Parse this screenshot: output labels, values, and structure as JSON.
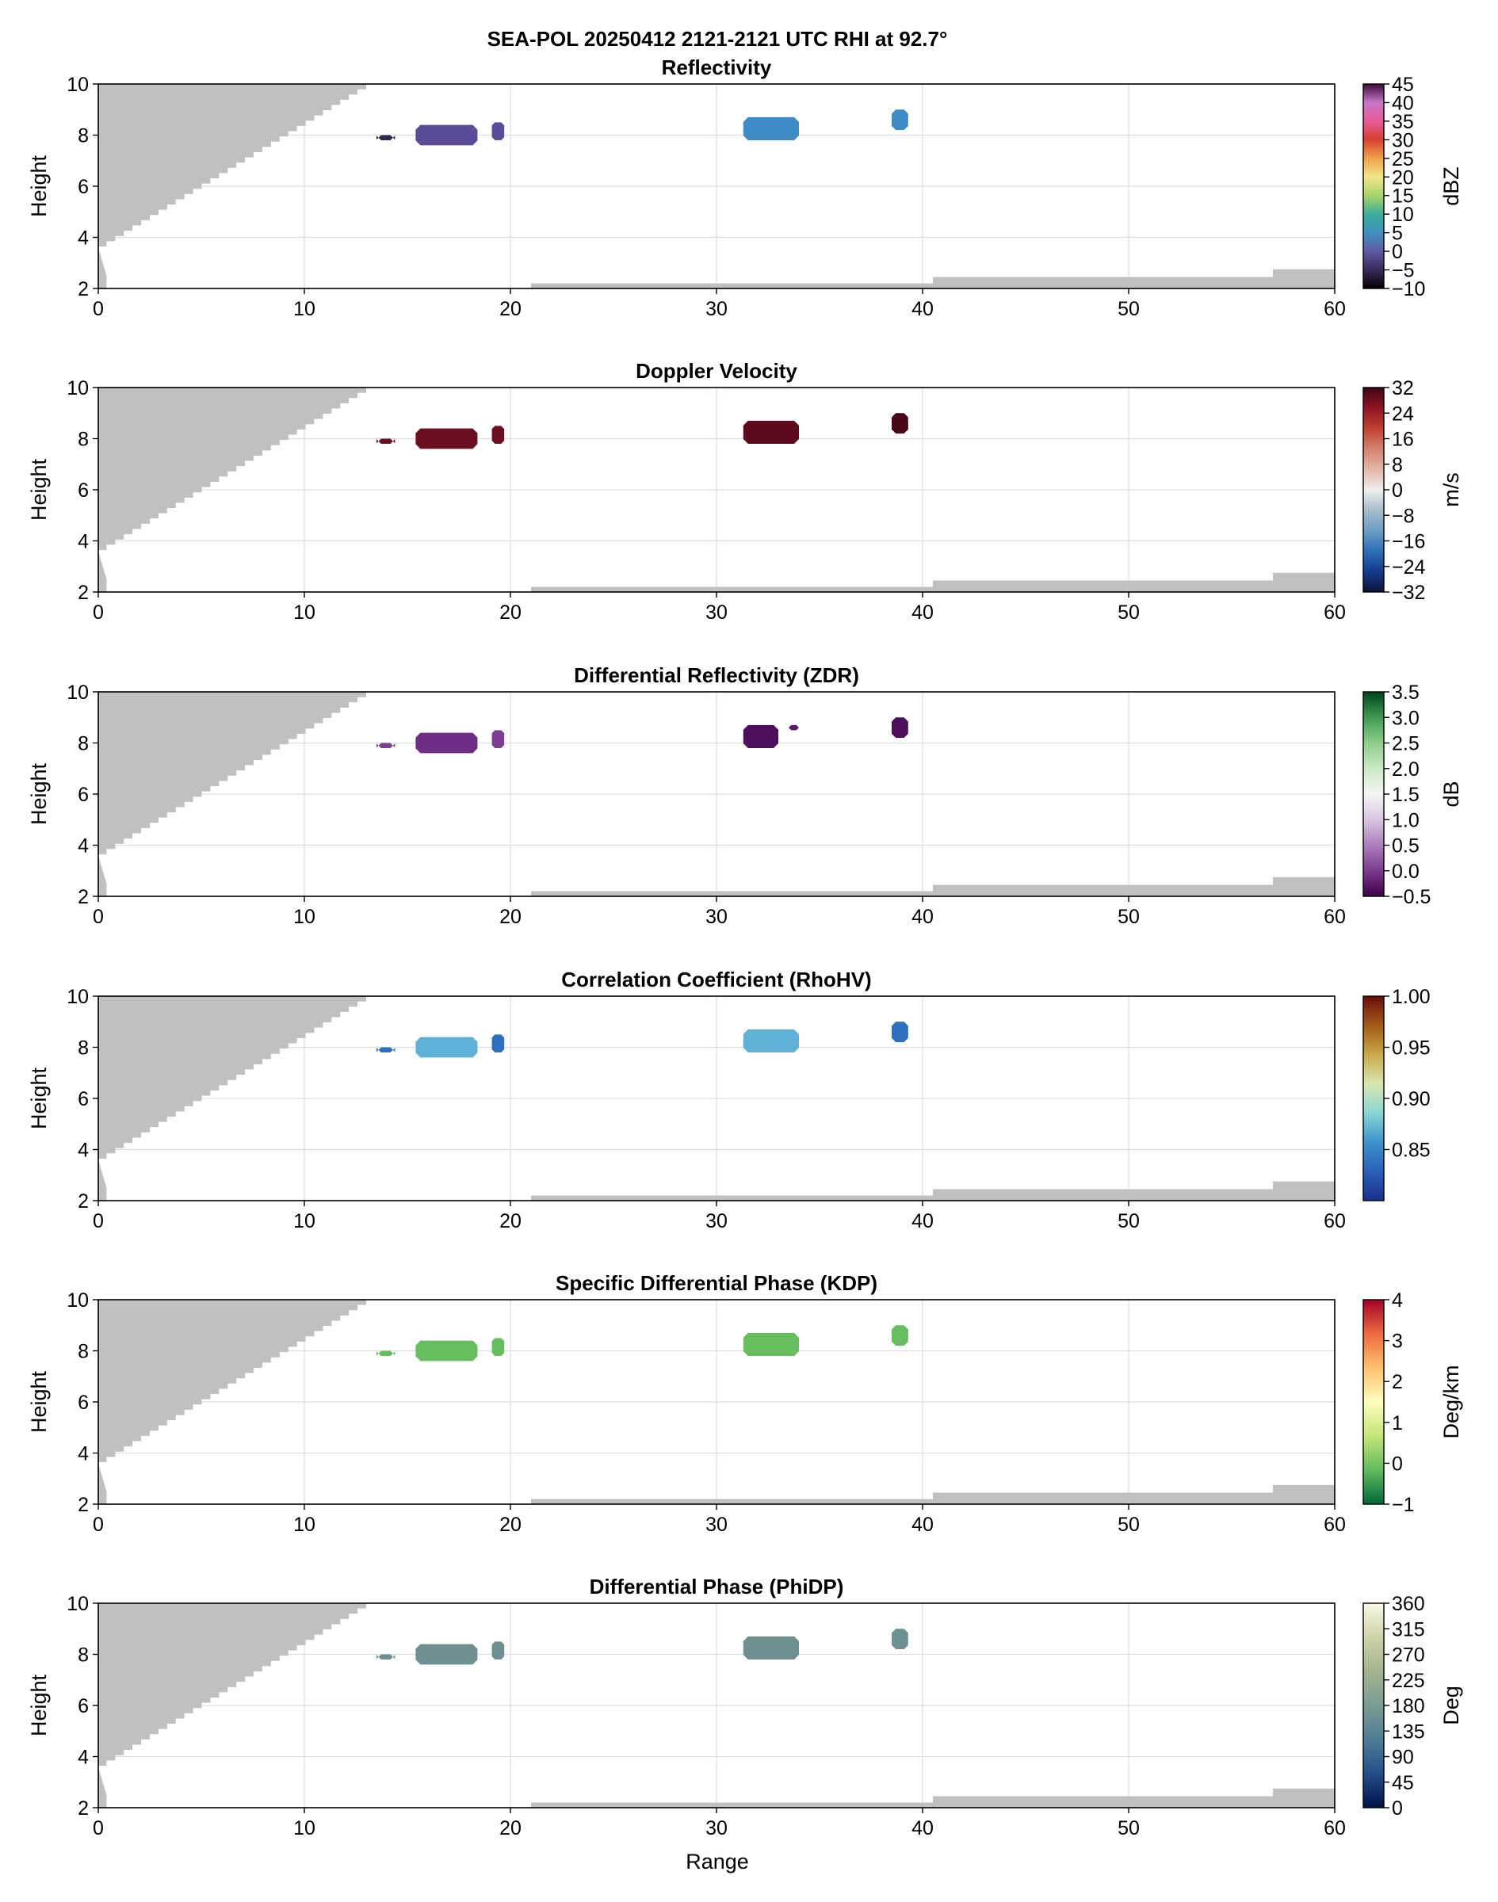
{
  "figure": {
    "suptitle": "SEA-POL 20250412 2121-2121 UTC RHI at 92.7°",
    "xlabel": "Range"
  },
  "colors": {
    "blocked_gray": "#c0c0c0",
    "grid": "#dedede",
    "axis": "#000000"
  },
  "chart_data": [
    {
      "type": "heatmap",
      "title": "Reflectivity",
      "xlabel": "",
      "ylabel": "Height",
      "xlim": [
        0,
        60
      ],
      "ylim": [
        2,
        10
      ],
      "xticks": [
        0,
        10,
        20,
        30,
        40,
        50,
        60
      ],
      "yticks": [
        2,
        4,
        6,
        8,
        10
      ],
      "grid": true,
      "colorbar": {
        "label": "dBZ",
        "range": [
          -10,
          45
        ],
        "ticks": [
          "45",
          "40",
          "35",
          "30",
          "25",
          "20",
          "15",
          "10",
          "5",
          "0",
          "−5",
          "−10"
        ],
        "tick_values": [
          45,
          40,
          35,
          30,
          25,
          20,
          15,
          10,
          5,
          0,
          -5,
          -10
        ],
        "stops": [
          "#000000",
          "#3a2a5a",
          "#5f5aa5",
          "#3f8fc0",
          "#3cae9a",
          "#a8d36a",
          "#f2e68a",
          "#f2a24a",
          "#d8402e",
          "#e85a9a",
          "#c877c8",
          "#3d0a3a"
        ]
      },
      "echoes": [
        {
          "x": [
            13.5,
            14.4
          ],
          "y": [
            7.8,
            8.0
          ],
          "color": "#2e2a4e"
        },
        {
          "x": [
            15.4,
            18.4
          ],
          "y": [
            7.6,
            8.4
          ],
          "color": "#5a4c98"
        },
        {
          "x": [
            19.1,
            19.7
          ],
          "y": [
            7.8,
            8.5
          ],
          "color": "#5a4c98"
        },
        {
          "x": [
            31.3,
            34.0
          ],
          "y": [
            7.8,
            8.7
          ],
          "color": "#3e8cc6"
        },
        {
          "x": [
            38.5,
            39.3
          ],
          "y": [
            8.2,
            9.0
          ],
          "color": "#3e8cc6"
        }
      ]
    },
    {
      "type": "heatmap",
      "title": "Doppler Velocity",
      "xlabel": "",
      "ylabel": "Height",
      "xlim": [
        0,
        60
      ],
      "ylim": [
        2,
        10
      ],
      "xticks": [
        0,
        10,
        20,
        30,
        40,
        50,
        60
      ],
      "yticks": [
        2,
        4,
        6,
        8,
        10
      ],
      "grid": true,
      "colorbar": {
        "label": "m/s",
        "range": [
          -32,
          32
        ],
        "ticks": [
          "32",
          "24",
          "16",
          "8",
          "0",
          "−8",
          "−16",
          "−24",
          "−32"
        ],
        "tick_values": [
          32,
          24,
          16,
          8,
          0,
          -8,
          -16,
          -24,
          -32
        ],
        "stops": [
          "#0a1238",
          "#153a8c",
          "#2c6fb8",
          "#6c9ec4",
          "#a6bccb",
          "#efefef",
          "#e3b7a6",
          "#d3826e",
          "#c2402f",
          "#8f1424",
          "#3d0614"
        ]
      },
      "echoes": [
        {
          "x": [
            13.5,
            14.4
          ],
          "y": [
            7.8,
            8.0
          ],
          "color": "#6b0f23"
        },
        {
          "x": [
            15.4,
            18.4
          ],
          "y": [
            7.6,
            8.4
          ],
          "color": "#6b0f23"
        },
        {
          "x": [
            19.1,
            19.7
          ],
          "y": [
            7.8,
            8.5
          ],
          "color": "#6b0f23"
        },
        {
          "x": [
            31.3,
            34.0
          ],
          "y": [
            7.8,
            8.7
          ],
          "color": "#5e0a1e"
        },
        {
          "x": [
            38.5,
            39.3
          ],
          "y": [
            8.2,
            9.0
          ],
          "color": "#4a0718"
        }
      ]
    },
    {
      "type": "heatmap",
      "title": "Differential Reflectivity (ZDR)",
      "xlabel": "",
      "ylabel": "Height",
      "xlim": [
        0,
        60
      ],
      "ylim": [
        2,
        10
      ],
      "xticks": [
        0,
        10,
        20,
        30,
        40,
        50,
        60
      ],
      "yticks": [
        2,
        4,
        6,
        8,
        10
      ],
      "grid": true,
      "colorbar": {
        "label": "dB",
        "range": [
          -0.5,
          3.5
        ],
        "ticks": [
          "3.5",
          "3.0",
          "2.5",
          "2.0",
          "1.5",
          "1.0",
          "0.5",
          "0.0",
          "−0.5"
        ],
        "tick_values": [
          3.5,
          3.0,
          2.5,
          2.0,
          1.5,
          1.0,
          0.5,
          0.0,
          -0.5
        ],
        "stops": [
          "#3f004a",
          "#7b3a8c",
          "#ad7ebc",
          "#d8c4e0",
          "#f5f5f5",
          "#cbe8c4",
          "#8dce8a",
          "#3f9b51",
          "#00441b"
        ]
      },
      "echoes": [
        {
          "x": [
            13.5,
            14.4
          ],
          "y": [
            7.8,
            8.0
          ],
          "color": "#7d3d90"
        },
        {
          "x": [
            15.4,
            18.4
          ],
          "y": [
            7.6,
            8.4
          ],
          "color": "#6e2e86"
        },
        {
          "x": [
            19.1,
            19.7
          ],
          "y": [
            7.8,
            8.5
          ],
          "color": "#7d3d90"
        },
        {
          "x": [
            31.3,
            33.0
          ],
          "y": [
            7.8,
            8.7
          ],
          "color": "#4d0f5c"
        },
        {
          "x": [
            33.5,
            34.0
          ],
          "y": [
            8.5,
            8.7
          ],
          "color": "#5a1a6a"
        },
        {
          "x": [
            38.5,
            39.3
          ],
          "y": [
            8.2,
            9.0
          ],
          "color": "#4d0f5c"
        }
      ]
    },
    {
      "type": "heatmap",
      "title": "Correlation Coefficient (RhoHV)",
      "xlabel": "",
      "ylabel": "Height",
      "xlim": [
        0,
        60
      ],
      "ylim": [
        2,
        10
      ],
      "xticks": [
        0,
        10,
        20,
        30,
        40,
        50,
        60
      ],
      "yticks": [
        2,
        4,
        6,
        8,
        10
      ],
      "grid": true,
      "colorbar": {
        "label": "",
        "range": [
          0.8,
          1.0
        ],
        "ticks": [
          "1.00",
          "0.95",
          "0.90",
          "0.85"
        ],
        "tick_values": [
          1.0,
          0.95,
          0.9,
          0.85
        ],
        "stops": [
          "#1a2f8e",
          "#2a60b8",
          "#3d93cc",
          "#8ad4d6",
          "#d9e7b0",
          "#c9a94a",
          "#a45a16",
          "#6a0d0a"
        ]
      },
      "echoes": [
        {
          "x": [
            13.5,
            14.4
          ],
          "y": [
            7.8,
            8.0
          ],
          "color": "#2f6fbf"
        },
        {
          "x": [
            15.4,
            18.4
          ],
          "y": [
            7.6,
            8.4
          ],
          "color": "#5fb1d8"
        },
        {
          "x": [
            19.1,
            19.7
          ],
          "y": [
            7.8,
            8.5
          ],
          "color": "#2f6fbf"
        },
        {
          "x": [
            31.3,
            34.0
          ],
          "y": [
            7.8,
            8.7
          ],
          "color": "#5fb1d8"
        },
        {
          "x": [
            38.5,
            39.3
          ],
          "y": [
            8.2,
            9.0
          ],
          "color": "#2f6fbf"
        }
      ]
    },
    {
      "type": "heatmap",
      "title": "Specific Differential Phase (KDP)",
      "xlabel": "",
      "ylabel": "Height",
      "xlim": [
        0,
        60
      ],
      "ylim": [
        2,
        10
      ],
      "xticks": [
        0,
        10,
        20,
        30,
        40,
        50,
        60
      ],
      "yticks": [
        2,
        4,
        6,
        8,
        10
      ],
      "grid": true,
      "colorbar": {
        "label": "Deg/km",
        "range": [
          -1,
          4
        ],
        "ticks": [
          "4",
          "3",
          "2",
          "1",
          "0",
          "−1"
        ],
        "tick_values": [
          4,
          3,
          2,
          1,
          0,
          -1
        ],
        "stops": [
          "#00683a",
          "#62bb5e",
          "#c4e57a",
          "#fffdbe",
          "#fdc16e",
          "#ee6a40",
          "#a50026"
        ]
      },
      "echoes": [
        {
          "x": [
            13.5,
            14.4
          ],
          "y": [
            7.8,
            8.0
          ],
          "color": "#66be5e"
        },
        {
          "x": [
            15.4,
            18.4
          ],
          "y": [
            7.6,
            8.4
          ],
          "color": "#66be5e"
        },
        {
          "x": [
            19.1,
            19.7
          ],
          "y": [
            7.8,
            8.5
          ],
          "color": "#66be5e"
        },
        {
          "x": [
            31.3,
            34.0
          ],
          "y": [
            7.8,
            8.7
          ],
          "color": "#66be5e"
        },
        {
          "x": [
            38.5,
            39.3
          ],
          "y": [
            8.2,
            9.0
          ],
          "color": "#66be5e"
        }
      ]
    },
    {
      "type": "heatmap",
      "title": "Differential Phase (PhiDP)",
      "xlabel": "Range",
      "ylabel": "Height",
      "xlim": [
        0,
        60
      ],
      "ylim": [
        2,
        10
      ],
      "xticks": [
        0,
        10,
        20,
        30,
        40,
        50,
        60
      ],
      "yticks": [
        2,
        4,
        6,
        8,
        10
      ],
      "grid": true,
      "colorbar": {
        "label": "Deg",
        "range": [
          0,
          360
        ],
        "ticks": [
          "360",
          "315",
          "270",
          "225",
          "180",
          "135",
          "90",
          "45",
          "0"
        ],
        "tick_values": [
          360,
          315,
          270,
          225,
          180,
          135,
          90,
          45,
          0
        ],
        "stops": [
          "#00124a",
          "#244e8a",
          "#4f7c96",
          "#7c9c94",
          "#a3b48e",
          "#cfd3a8",
          "#f8f8e6"
        ]
      },
      "echoes": [
        {
          "x": [
            13.5,
            14.4
          ],
          "y": [
            7.8,
            8.0
          ],
          "color": "#6e9090"
        },
        {
          "x": [
            15.4,
            18.4
          ],
          "y": [
            7.6,
            8.4
          ],
          "color": "#6e9090"
        },
        {
          "x": [
            19.1,
            19.7
          ],
          "y": [
            7.8,
            8.5
          ],
          "color": "#6e9090"
        },
        {
          "x": [
            31.3,
            34.0
          ],
          "y": [
            7.8,
            8.7
          ],
          "color": "#6e9090"
        },
        {
          "x": [
            38.5,
            39.3
          ],
          "y": [
            8.2,
            9.0
          ],
          "color": "#6e9090"
        }
      ]
    }
  ]
}
